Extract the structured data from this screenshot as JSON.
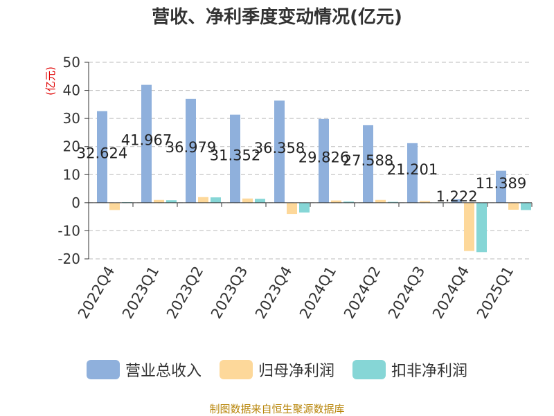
{
  "chart_data": {
    "type": "bar",
    "title": "营收、净利季度变动情况(亿元)",
    "ylabel": "(亿元)",
    "ylim": [
      -20,
      50
    ],
    "yticks": [
      50,
      40,
      30,
      20,
      10,
      0,
      -10,
      -20
    ],
    "categories": [
      "2022Q4",
      "2023Q1",
      "2023Q2",
      "2023Q3",
      "2023Q4",
      "2024Q1",
      "2024Q2",
      "2024Q3",
      "2024Q4",
      "2025Q1"
    ],
    "series": [
      {
        "name": "营业总收入",
        "color": "#8fb0dc",
        "values": [
          32.624,
          41.967,
          36.979,
          31.352,
          36.358,
          29.826,
          27.588,
          21.201,
          1.222,
          11.389
        ]
      },
      {
        "name": "归母净利润",
        "color": "#fdd89a",
        "values": [
          -2.6,
          1.0,
          2.0,
          1.5,
          -4.0,
          0.8,
          1.0,
          0.6,
          -17.2,
          -2.5
        ]
      },
      {
        "name": "扣非净利润",
        "color": "#86d6d6",
        "values": [
          0.2,
          0.9,
          1.9,
          1.4,
          -3.5,
          0.4,
          0.3,
          0.1,
          -17.6,
          -2.6
        ]
      }
    ],
    "data_labels": [
      "32.624",
      "41.967",
      "36.979",
      "31.352",
      "36.358",
      "29.826",
      "27.588",
      "21.201",
      "1.222",
      "11.389"
    ],
    "grid": true,
    "legend": "bottom"
  },
  "source": "制图数据来自恒生聚源数据库"
}
